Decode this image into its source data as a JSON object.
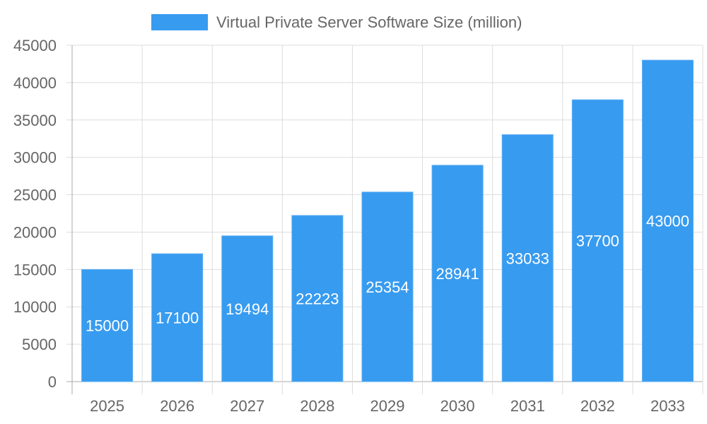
{
  "chart_data": {
    "type": "bar",
    "title": "",
    "xlabel": "",
    "ylabel": "",
    "categories": [
      "2025",
      "2026",
      "2027",
      "2028",
      "2029",
      "2030",
      "2031",
      "2032",
      "2033"
    ],
    "series": [
      {
        "name": "Virtual Private Server Software Size (million)",
        "values": [
          15000,
          17100,
          19494,
          22223,
          25354,
          28941,
          33033,
          37700,
          43000
        ]
      }
    ],
    "ylim": [
      0,
      45000
    ],
    "yticks": [
      0,
      5000,
      10000,
      15000,
      20000,
      25000,
      30000,
      35000,
      40000,
      45000
    ],
    "grid": true,
    "legend_position": "top",
    "data_labels": true,
    "colors": {
      "bar": "#379bf0",
      "bar_border": "#5aacf2",
      "label": "#ffffff",
      "tick": "#666666",
      "grid": "#dddddd"
    }
  }
}
